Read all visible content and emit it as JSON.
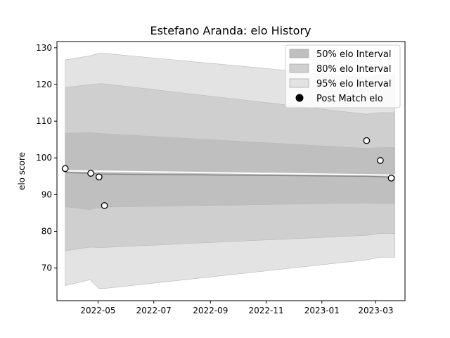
{
  "chart_data": {
    "type": "area",
    "title": "Estefano Aranda: elo History",
    "xlabel": "",
    "ylabel": "elo score",
    "xlim": [
      "2022-03-17",
      "2023-04-02"
    ],
    "ylim": [
      61.1,
      131.7
    ],
    "x_ticks": [
      "2022-05",
      "2022-07",
      "2022-09",
      "2022-11",
      "2023-01",
      "2023-03"
    ],
    "y_ticks": [
      70,
      80,
      90,
      100,
      110,
      120,
      130
    ],
    "legend_position": "top-right",
    "bands": [
      {
        "name": "95% elo Interval",
        "color": "#e3e3e3",
        "x": [
          "2022-03-26",
          "2022-04-22",
          "2022-05-02",
          "2022-05-07",
          "2023-02-19",
          "2023-03-05",
          "2023-03-22"
        ],
        "upper": [
          126.7,
          127.8,
          128.5,
          128.5,
          121.8,
          122.6,
          122.6
        ],
        "lower": [
          65.2,
          66.8,
          64.4,
          64.4,
          72.2,
          72.9,
          72.9
        ]
      },
      {
        "name": "80% elo Interval",
        "color": "#cfcfcf",
        "x": [
          "2022-03-26",
          "2022-04-22",
          "2022-05-02",
          "2022-05-07",
          "2023-02-19",
          "2023-03-05",
          "2023-03-22"
        ],
        "upper": [
          119.2,
          120.0,
          120.2,
          120.2,
          111.9,
          112.3,
          112.3
        ],
        "lower": [
          74.7,
          75.7,
          75.6,
          75.6,
          78.9,
          79.4,
          79.4
        ]
      },
      {
        "name": "50% elo Interval",
        "color": "#bfbfbf",
        "x": [
          "2022-03-26",
          "2022-04-22",
          "2022-05-02",
          "2022-05-07",
          "2023-02-19",
          "2023-03-05",
          "2023-03-22"
        ],
        "upper": [
          106.7,
          106.9,
          106.7,
          106.6,
          102.6,
          102.8,
          102.8
        ],
        "lower": [
          86.7,
          85.9,
          86.5,
          86.6,
          87.7,
          87.6,
          87.6
        ]
      }
    ],
    "series": [
      {
        "name": "Mean",
        "color": "#888888",
        "x": [
          "2022-03-26",
          "2022-04-22",
          "2022-05-02",
          "2023-02-19",
          "2023-03-22"
        ],
        "y": [
          96.0,
          95.8,
          95.6,
          95.0,
          94.7
        ]
      },
      {
        "name": "Trend",
        "color": "#ffffff",
        "x": [
          "2022-03-26",
          "2023-03-22"
        ],
        "y": [
          96.5,
          95.3
        ]
      }
    ],
    "points": {
      "name": "Post Match elo",
      "x": [
        "2022-03-26",
        "2022-04-23",
        "2022-05-02",
        "2022-05-08",
        "2023-02-19",
        "2023-03-06",
        "2023-03-18"
      ],
      "y": [
        97.1,
        95.8,
        94.8,
        87.0,
        104.7,
        99.3,
        94.5
      ]
    }
  }
}
